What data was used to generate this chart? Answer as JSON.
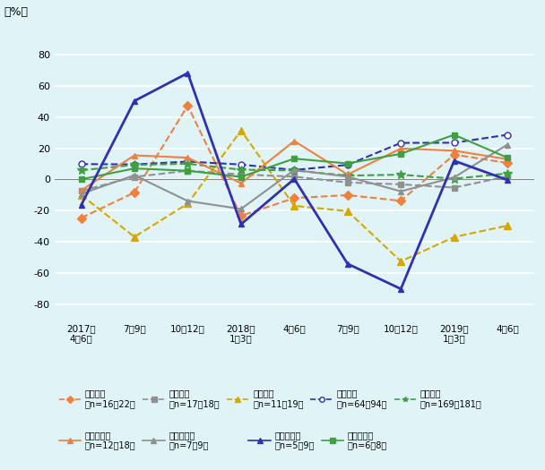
{
  "x_labels": [
    "2017年\n4～6月",
    "7～9月",
    "10～12月",
    "2018年\n1～3月",
    "4～6月",
    "7～9月",
    "10～12月",
    "2019年\n1～3月",
    "4～6月"
  ],
  "series": {
    "韓国・大": [
      -24.8,
      -8.4,
      47.3,
      -23.4,
      -12.0,
      -10.1,
      -13.8,
      15.9,
      10.5
    ],
    "台湾・大": [
      -7.4,
      1.6,
      5.5,
      3.2,
      1.7,
      -2.0,
      -3.2,
      -5.3,
      1.9
    ],
    "中国・大": [
      -10.0,
      -36.9,
      -15.6,
      31.4,
      -17.0,
      -20.4,
      -52.6,
      -37.0,
      -29.7
    ],
    "米国・大": [
      9.8,
      9.6,
      11.4,
      9.5,
      6.0,
      9.3,
      23.4,
      23.5,
      28.6
    ],
    "日本・大": [
      5.8,
      9.3,
      10.0,
      6.2,
      5.7,
      2.4,
      3.0,
      0.4,
      3.8
    ],
    "韓国・中小": [
      -7.1,
      15.4,
      13.9,
      -2.5,
      24.6,
      3.1,
      19.8,
      18.4,
      12.9
    ],
    "台湾・中小": [
      -9.3,
      2.6,
      -13.9,
      -19.0,
      6.0,
      1.7,
      -7.7,
      1.3,
      22.3
    ],
    "米国・中小": [
      -16.6,
      50.3,
      68.2,
      -28.8,
      0.3,
      -54.2,
      -70.3,
      11.9,
      -0.4
    ],
    "日本・中小": [
      0.0,
      7.0,
      5.5,
      1.6,
      13.3,
      10.2,
      16.4,
      28.6,
      13.9
    ]
  },
  "colors": {
    "韓国・大": "#f08040",
    "台湾・大": "#808080",
    "中国・大": "#c8a800",
    "米国・大": "#4040c0",
    "日本・大": "#40a040",
    "韓国・中小": "#f08040",
    "台湾・中小": "#808080",
    "米国・中小": "#4040c0",
    "日本・中小": "#40a040"
  },
  "legend_labels": {
    "韓国・大": "韓国・大\n（n=16～22）",
    "台湾・大": "台湾・大\n（n=17～18）",
    "中国・大": "中国・大\n（n=11～19）",
    "米国・大": "米国・大\n（n=64～94）",
    "日本・大": "日本・大\n（n=169～181）",
    "韓国・中小": "韓国・中小\n（n=12～18）",
    "台湾・中小": "台湾・中小\n（n=7～9）",
    "米国・中小": "米国・中小\n（n=5～9）",
    "日本・中小": "日本・中小\n（n=6～8）"
  },
  "ylabel": "（%）",
  "ylim": [
    -90,
    100
  ],
  "yticks": [
    -80,
    -60,
    -40,
    -20,
    0,
    20,
    40,
    60,
    80
  ],
  "background_color": "#e0f4f8",
  "grid_color": "#ffffff"
}
